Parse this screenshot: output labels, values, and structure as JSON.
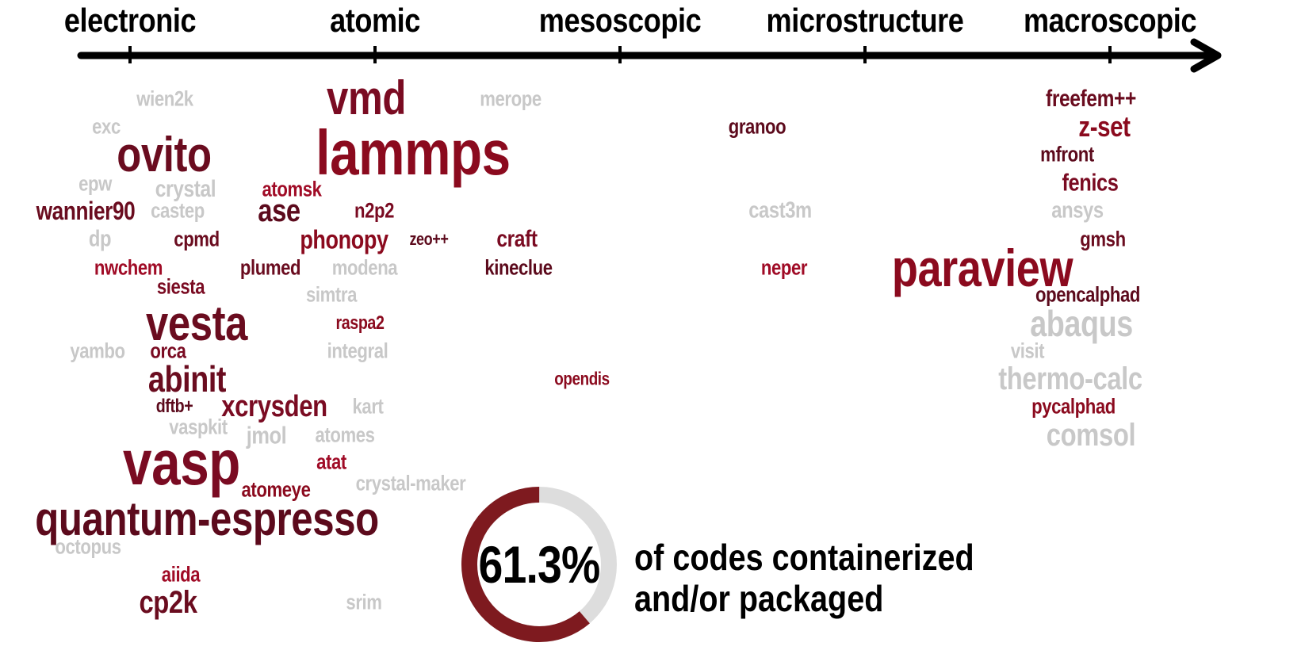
{
  "scale_labels": [
    "electronic",
    "atomic",
    "mesoscopic",
    "microstructure",
    "macroscopic"
  ],
  "percentage": {
    "value_text": "61.3%",
    "fraction": 0.613,
    "caption_line1": "of codes containerized",
    "caption_line2": "and/or packaged"
  },
  "colors": {
    "axis": "#000000",
    "packaged": "#8b0a1e",
    "not_packaged": "#c8c8c8",
    "donut_filled": "#7e1a1f",
    "donut_empty": "#dddddd"
  },
  "codes": [
    {
      "name": "wien2k",
      "packaged": false
    },
    {
      "name": "merope",
      "packaged": false
    },
    {
      "name": "vmd",
      "packaged": true
    },
    {
      "name": "exc",
      "packaged": false
    },
    {
      "name": "ovito",
      "packaged": true
    },
    {
      "name": "lammps",
      "packaged": true
    },
    {
      "name": "epw",
      "packaged": false
    },
    {
      "name": "crystal",
      "packaged": false
    },
    {
      "name": "atomsk",
      "packaged": true
    },
    {
      "name": "wannier90",
      "packaged": true
    },
    {
      "name": "castep",
      "packaged": false
    },
    {
      "name": "ase",
      "packaged": true
    },
    {
      "name": "n2p2",
      "packaged": true
    },
    {
      "name": "dp",
      "packaged": false
    },
    {
      "name": "cpmd",
      "packaged": true
    },
    {
      "name": "phonopy",
      "packaged": true
    },
    {
      "name": "zeo++",
      "packaged": true
    },
    {
      "name": "craft",
      "packaged": true
    },
    {
      "name": "nwchem",
      "packaged": true
    },
    {
      "name": "plumed",
      "packaged": true
    },
    {
      "name": "modena",
      "packaged": false
    },
    {
      "name": "kineclue",
      "packaged": true
    },
    {
      "name": "siesta",
      "packaged": true
    },
    {
      "name": "simtra",
      "packaged": false
    },
    {
      "name": "vesta",
      "packaged": true
    },
    {
      "name": "raspa2",
      "packaged": true
    },
    {
      "name": "yambo",
      "packaged": false
    },
    {
      "name": "orca",
      "packaged": true
    },
    {
      "name": "integral",
      "packaged": false
    },
    {
      "name": "abinit",
      "packaged": true
    },
    {
      "name": "opendis",
      "packaged": true
    },
    {
      "name": "dftb+",
      "packaged": true
    },
    {
      "name": "xcrysden",
      "packaged": true
    },
    {
      "name": "kart",
      "packaged": false
    },
    {
      "name": "vaspkit",
      "packaged": false
    },
    {
      "name": "jmol",
      "packaged": false
    },
    {
      "name": "atomes",
      "packaged": false
    },
    {
      "name": "vasp",
      "packaged": true
    },
    {
      "name": "atat",
      "packaged": true
    },
    {
      "name": "crystal-maker",
      "packaged": false
    },
    {
      "name": "atomeye",
      "packaged": true
    },
    {
      "name": "quantum-espresso",
      "packaged": true
    },
    {
      "name": "octopus",
      "packaged": false
    },
    {
      "name": "aiida",
      "packaged": true
    },
    {
      "name": "cp2k",
      "packaged": true
    },
    {
      "name": "srim",
      "packaged": false
    },
    {
      "name": "granoo",
      "packaged": true
    },
    {
      "name": "cast3m",
      "packaged": false
    },
    {
      "name": "neper",
      "packaged": true
    },
    {
      "name": "freefem++",
      "packaged": true
    },
    {
      "name": "z-set",
      "packaged": true
    },
    {
      "name": "mfront",
      "packaged": true
    },
    {
      "name": "fenics",
      "packaged": true
    },
    {
      "name": "ansys",
      "packaged": false
    },
    {
      "name": "gmsh",
      "packaged": true
    },
    {
      "name": "paraview",
      "packaged": true
    },
    {
      "name": "opencalphad",
      "packaged": true
    },
    {
      "name": "abaqus",
      "packaged": false
    },
    {
      "name": "visit",
      "packaged": false
    },
    {
      "name": "thermo-calc",
      "packaged": false
    },
    {
      "name": "pycalphad",
      "packaged": true
    },
    {
      "name": "comsol",
      "packaged": false
    }
  ]
}
